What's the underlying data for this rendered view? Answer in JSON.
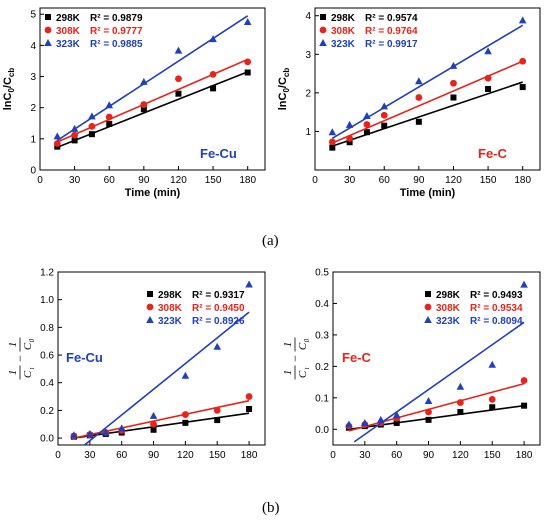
{
  "captions": {
    "a": "(a)",
    "b": "(b)"
  },
  "chart_data": [
    {
      "panel": "top-left",
      "type": "scatter",
      "title": "",
      "xlabel": "Time (min)",
      "ylabel_main": "lnC",
      "ylabel_sub1": "0",
      "ylabel_mid": "/C",
      "ylabel_sub2": "cb",
      "inset_label": "Fe-Cu",
      "inset_color": "#1f3fbf",
      "xlim": [
        0,
        195
      ],
      "ylim": [
        0,
        5.2
      ],
      "xticks": [
        0,
        30,
        60,
        90,
        120,
        150,
        180
      ],
      "yticks": [
        0,
        1,
        2,
        3,
        4,
        5
      ],
      "legend_position": "top-left",
      "series": [
        {
          "name": "298K",
          "r2": "R² = 0.9879",
          "color": "#000000",
          "marker": "square",
          "x": [
            15,
            30,
            45,
            60,
            90,
            120,
            150,
            180
          ],
          "y": [
            0.75,
            0.95,
            1.15,
            1.48,
            1.95,
            2.45,
            2.62,
            3.13
          ],
          "fit": [
            [
              15,
              0.73
            ],
            [
              180,
              3.15
            ]
          ]
        },
        {
          "name": "308K",
          "r2": "R² = 0.9777",
          "color": "#e8231a",
          "marker": "circle",
          "x": [
            15,
            30,
            45,
            60,
            90,
            120,
            150,
            180
          ],
          "y": [
            0.85,
            1.12,
            1.4,
            1.7,
            2.1,
            2.93,
            3.07,
            3.47
          ],
          "fit": [
            [
              15,
              0.9
            ],
            [
              180,
              3.55
            ]
          ]
        },
        {
          "name": "323K",
          "r2": "R² = 0.9885",
          "color": "#1f3fbf",
          "marker": "triangle",
          "x": [
            15,
            30,
            45,
            60,
            90,
            120,
            150,
            180
          ],
          "y": [
            1.08,
            1.32,
            1.72,
            2.08,
            2.83,
            3.83,
            4.2,
            4.75
          ],
          "fit": [
            [
              15,
              0.95
            ],
            [
              180,
              4.95
            ]
          ]
        }
      ]
    },
    {
      "panel": "top-right",
      "type": "scatter",
      "title": "",
      "xlabel": "Time (min)",
      "ylabel_main": "lnC",
      "ylabel_sub1": "0",
      "ylabel_mid": "/C",
      "ylabel_sub2": "cb",
      "inset_label": "Fe-C",
      "inset_color": "#e8231a",
      "xlim": [
        0,
        195
      ],
      "ylim": [
        0,
        4.2
      ],
      "xticks": [
        0,
        30,
        60,
        90,
        120,
        150,
        180
      ],
      "yticks": [
        1,
        2,
        3,
        4
      ],
      "legend_position": "top-left",
      "series": [
        {
          "name": "298K",
          "r2": "R² = 0.9574",
          "color": "#000000",
          "marker": "square",
          "x": [
            15,
            30,
            45,
            60,
            90,
            120,
            150,
            180
          ],
          "y": [
            0.58,
            0.72,
            0.98,
            1.15,
            1.25,
            1.88,
            2.1,
            2.15
          ],
          "fit": [
            [
              15,
              0.62
            ],
            [
              180,
              2.28
            ]
          ]
        },
        {
          "name": "308K",
          "r2": "R² = 0.9764",
          "color": "#e8231a",
          "marker": "circle",
          "x": [
            15,
            30,
            45,
            60,
            90,
            120,
            150,
            180
          ],
          "y": [
            0.73,
            0.82,
            1.18,
            1.42,
            1.88,
            2.25,
            2.38,
            2.82
          ],
          "fit": [
            [
              15,
              0.7
            ],
            [
              180,
              2.82
            ]
          ]
        },
        {
          "name": "323K",
          "r2": "R² = 0.9917",
          "color": "#1f3fbf",
          "marker": "triangle",
          "x": [
            15,
            30,
            45,
            60,
            90,
            120,
            150,
            180
          ],
          "y": [
            0.98,
            1.17,
            1.4,
            1.65,
            2.3,
            2.7,
            3.08,
            3.88
          ],
          "fit": [
            [
              15,
              0.82
            ],
            [
              180,
              3.75
            ]
          ]
        }
      ]
    },
    {
      "panel": "bottom-left",
      "type": "scatter",
      "title": "",
      "xlabel": "",
      "ylabel_frac1_num": "1",
      "ylabel_frac1_den": "C",
      "ylabel_frac1_sub": "t",
      "ylabel_frac2_num": "1",
      "ylabel_frac2_den": "C",
      "ylabel_frac2_sub": "0",
      "ylabel_minus": "−",
      "inset_label": "Fe-Cu",
      "inset_color": "#1f3fbf",
      "xlim": [
        0,
        195
      ],
      "ylim": [
        -0.05,
        1.2
      ],
      "xticks": [
        0,
        30,
        60,
        90,
        120,
        150,
        180
      ],
      "xtick_labels": [
        "0",
        "30",
        "60",
        "90",
        "120",
        "150",
        "180"
      ],
      "yticks": [
        0.0,
        0.2,
        0.4,
        0.6,
        0.8,
        1.0,
        1.2
      ],
      "ytick_labels": [
        "0.0",
        "0.2",
        "0.4",
        "0.6",
        "0.8",
        "1.0",
        "1.2"
      ],
      "legend_position": "top-right",
      "series": [
        {
          "name": "298K",
          "r2": "R² = 0.9317",
          "color": "#000000",
          "marker": "square",
          "x": [
            15,
            30,
            45,
            60,
            90,
            120,
            150,
            180
          ],
          "y": [
            0.01,
            0.02,
            0.03,
            0.04,
            0.06,
            0.11,
            0.13,
            0.21
          ],
          "fit": [
            [
              15,
              0.0
            ],
            [
              180,
              0.18
            ]
          ]
        },
        {
          "name": "308K",
          "r2": "R² = 0.9450",
          "color": "#e8231a",
          "marker": "circle",
          "x": [
            15,
            30,
            45,
            60,
            90,
            120,
            150,
            180
          ],
          "y": [
            0.015,
            0.025,
            0.04,
            0.055,
            0.1,
            0.17,
            0.2,
            0.3
          ],
          "fit": [
            [
              15,
              0.0
            ],
            [
              180,
              0.27
            ]
          ]
        },
        {
          "name": "323K",
          "r2": "R² = 0.8926",
          "color": "#1f3fbf",
          "marker": "triangle",
          "x": [
            15,
            30,
            45,
            60,
            90,
            120,
            150,
            180
          ],
          "y": [
            0.02,
            0.03,
            0.04,
            0.07,
            0.16,
            0.45,
            0.66,
            1.11
          ],
          "fit": [
            [
              25,
              -0.05
            ],
            [
              180,
              0.91
            ]
          ]
        }
      ]
    },
    {
      "panel": "bottom-right",
      "type": "scatter",
      "title": "",
      "xlabel": "",
      "ylabel_frac1_num": "1",
      "ylabel_frac1_den": "C",
      "ylabel_frac1_sub": "t",
      "ylabel_frac2_num": "1",
      "ylabel_frac2_den": "C",
      "ylabel_frac2_sub": "0",
      "ylabel_minus": "−",
      "inset_label": "Fe-C",
      "inset_color": "#e8231a",
      "xlim": [
        0,
        195
      ],
      "ylim": [
        -0.05,
        0.5
      ],
      "xticks": [
        0,
        30,
        60,
        90,
        120,
        150,
        180
      ],
      "xtick_labels": [
        "0",
        "30",
        "60",
        "90",
        "120",
        "150",
        "180"
      ],
      "yticks": [
        0.0,
        0.1,
        0.2,
        0.3,
        0.4,
        0.5
      ],
      "ytick_labels": [
        "0.0",
        "0.1",
        "0.2",
        "0.3",
        "0.4",
        "0.5"
      ],
      "legend_position": "top-right",
      "series": [
        {
          "name": "298K",
          "r2": "R² = 0.9493",
          "color": "#000000",
          "marker": "square",
          "x": [
            15,
            30,
            45,
            60,
            90,
            120,
            150,
            180
          ],
          "y": [
            0.005,
            0.01,
            0.015,
            0.02,
            0.03,
            0.055,
            0.07,
            0.075
          ],
          "fit": [
            [
              15,
              0.0
            ],
            [
              180,
              0.075
            ]
          ]
        },
        {
          "name": "308K",
          "r2": "R² = 0.9534",
          "color": "#e8231a",
          "marker": "circle",
          "x": [
            15,
            30,
            45,
            60,
            90,
            120,
            150,
            180
          ],
          "y": [
            0.01,
            0.015,
            0.02,
            0.035,
            0.055,
            0.085,
            0.095,
            0.155
          ],
          "fit": [
            [
              15,
              -0.005
            ],
            [
              180,
              0.145
            ]
          ]
        },
        {
          "name": "323K",
          "r2": "R² = 0.8094",
          "color": "#1f3fbf",
          "marker": "triangle",
          "x": [
            15,
            30,
            45,
            60,
            90,
            120,
            150,
            180
          ],
          "y": [
            0.015,
            0.02,
            0.03,
            0.045,
            0.09,
            0.135,
            0.205,
            0.46
          ],
          "fit": [
            [
              20,
              -0.04
            ],
            [
              180,
              0.34
            ]
          ]
        }
      ]
    }
  ]
}
